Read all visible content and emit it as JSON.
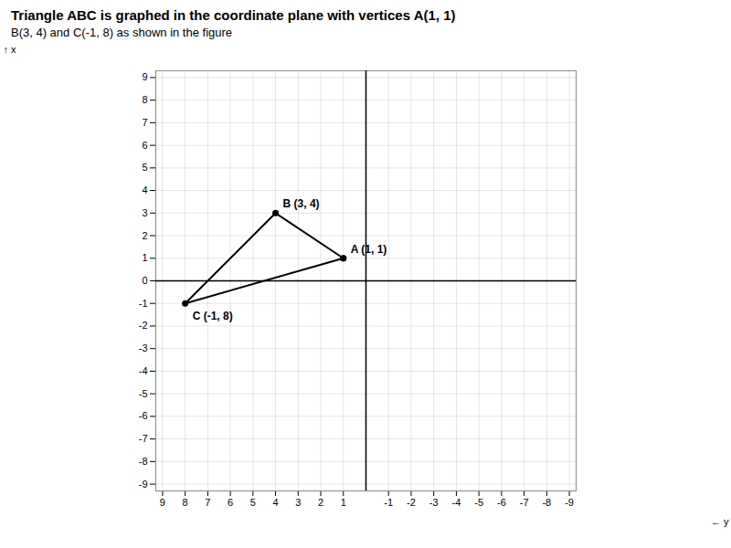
{
  "chart_data": {
    "type": "line",
    "title": "Triangle ABC is graphed in the coordinate plane with vertices A(1, 1)",
    "subtitle": "B(3, 4) and C(-1, 8) as shown in the figure",
    "xlabel": "y",
    "ylabel": "x",
    "x": [
      1,
      4,
      8,
      1
    ],
    "values": [
      1,
      3,
      -1,
      1
    ],
    "color": "#000000",
    "marker": "o",
    "xlim": [
      9.3,
      -9.3
    ],
    "ylim": [
      -9.3,
      9.3
    ],
    "xticks": [
      -9,
      -8,
      -7,
      -6,
      -5,
      -4,
      -3,
      -2,
      -1,
      1,
      2,
      3,
      4,
      5,
      6,
      7,
      8,
      9
    ],
    "yticks": [
      -9,
      -8,
      -7,
      -6,
      -5,
      -4,
      -3,
      -2,
      -1,
      0,
      1,
      2,
      3,
      4,
      5,
      6,
      7,
      8,
      9
    ],
    "grid": true,
    "annotations": [
      {
        "text": "A (1, 1)",
        "x": 1,
        "y": 1
      },
      {
        "text": "B (3, 4)",
        "x": 4,
        "y": 3
      },
      {
        "text": "C (-1, 8)",
        "x": 8,
        "y": -1
      }
    ]
  }
}
